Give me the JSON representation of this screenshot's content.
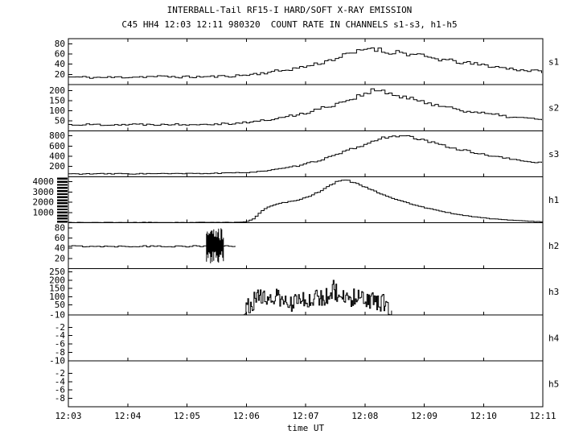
{
  "chart_data": {
    "type": "line",
    "title": "INTERBALL-Tail RF15-I HARD/SOFT X-RAY EMISSION",
    "subtitle": "C45 HH4 12:03 12:11 980320  COUNT RATE IN CHANNELS s1-s3, h1-h5",
    "xlabel": "time UT",
    "x_ticks": [
      "12:03",
      "12:04",
      "12:05",
      "12:06",
      "12:07",
      "12:08",
      "12:09",
      "12:10",
      "12:11"
    ],
    "x_range_minutes": [
      0,
      8
    ],
    "grid": false,
    "legend": "none",
    "foreground": "#000000",
    "background": "#ffffff",
    "panels": [
      {
        "label": "s1",
        "ylim": [
          0,
          90
        ],
        "yticks": [
          20,
          40,
          60,
          80
        ],
        "dt": 0.06,
        "noise": 5,
        "seed": 11,
        "envelope": [
          [
            0,
            15
          ],
          [
            0.5,
            14
          ],
          [
            1,
            15
          ],
          [
            1.5,
            16
          ],
          [
            2,
            15
          ],
          [
            2.5,
            16
          ],
          [
            2.9,
            18
          ],
          [
            3.2,
            22
          ],
          [
            3.6,
            28
          ],
          [
            4.0,
            36
          ],
          [
            4.3,
            45
          ],
          [
            4.6,
            56
          ],
          [
            4.9,
            66
          ],
          [
            5.05,
            73
          ],
          [
            5.2,
            69
          ],
          [
            5.35,
            62
          ],
          [
            5.5,
            65
          ],
          [
            5.7,
            60
          ],
          [
            5.9,
            57
          ],
          [
            6.1,
            52
          ],
          [
            6.4,
            47
          ],
          [
            6.7,
            42
          ],
          [
            7.0,
            38
          ],
          [
            7.3,
            33
          ],
          [
            7.6,
            29
          ],
          [
            8.0,
            25
          ]
        ]
      },
      {
        "label": "s2",
        "ylim": [
          0,
          230
        ],
        "yticks": [
          50,
          100,
          150,
          200
        ],
        "dt": 0.06,
        "noise": 12,
        "seed": 22,
        "envelope": [
          [
            0,
            30
          ],
          [
            1,
            31
          ],
          [
            2,
            32
          ],
          [
            2.7,
            36
          ],
          [
            3.0,
            42
          ],
          [
            3.3,
            52
          ],
          [
            3.6,
            66
          ],
          [
            3.9,
            84
          ],
          [
            4.2,
            108
          ],
          [
            4.5,
            135
          ],
          [
            4.8,
            165
          ],
          [
            5.0,
            190
          ],
          [
            5.15,
            203
          ],
          [
            5.3,
            192
          ],
          [
            5.5,
            175
          ],
          [
            5.7,
            160
          ],
          [
            5.9,
            150
          ],
          [
            6.1,
            135
          ],
          [
            6.4,
            115
          ],
          [
            6.7,
            98
          ],
          [
            7.0,
            85
          ],
          [
            7.4,
            70
          ],
          [
            7.7,
            62
          ],
          [
            8.0,
            55
          ]
        ]
      },
      {
        "label": "s3",
        "ylim": [
          0,
          900
        ],
        "yticks": [
          200,
          400,
          600,
          800
        ],
        "dt": 0.06,
        "noise": 25,
        "seed": 33,
        "envelope": [
          [
            0,
            55
          ],
          [
            1,
            58
          ],
          [
            2,
            60
          ],
          [
            2.7,
            70
          ],
          [
            3.0,
            85
          ],
          [
            3.3,
            115
          ],
          [
            3.6,
            160
          ],
          [
            3.9,
            225
          ],
          [
            4.2,
            320
          ],
          [
            4.5,
            430
          ],
          [
            4.8,
            560
          ],
          [
            5.1,
            680
          ],
          [
            5.3,
            770
          ],
          [
            5.5,
            805
          ],
          [
            5.7,
            780
          ],
          [
            5.9,
            730
          ],
          [
            6.1,
            670
          ],
          [
            6.4,
            580
          ],
          [
            6.7,
            500
          ],
          [
            7.0,
            430
          ],
          [
            7.4,
            350
          ],
          [
            7.7,
            300
          ],
          [
            8.0,
            265
          ]
        ]
      },
      {
        "label": "h1",
        "ylim": [
          0,
          4500
        ],
        "yticks": [
          1000,
          2000,
          3000,
          4000
        ],
        "dt": 0.05,
        "noise": 60,
        "seed": 44,
        "thick_minor_ticks": {
          "from": 100,
          "step": 300,
          "to": 4400
        },
        "envelope": [
          [
            0,
            25
          ],
          [
            1,
            25
          ],
          [
            2,
            28
          ],
          [
            2.8,
            35
          ],
          [
            3.0,
            120
          ],
          [
            3.1,
            400
          ],
          [
            3.2,
            900
          ],
          [
            3.3,
            1400
          ],
          [
            3.45,
            1750
          ],
          [
            3.6,
            1950
          ],
          [
            3.8,
            2150
          ],
          [
            4.0,
            2500
          ],
          [
            4.2,
            3000
          ],
          [
            4.35,
            3500
          ],
          [
            4.5,
            4000
          ],
          [
            4.6,
            4200
          ],
          [
            4.7,
            4100
          ],
          [
            4.85,
            3800
          ],
          [
            5.0,
            3450
          ],
          [
            5.2,
            2950
          ],
          [
            5.4,
            2500
          ],
          [
            5.6,
            2100
          ],
          [
            5.9,
            1600
          ],
          [
            6.2,
            1200
          ],
          [
            6.5,
            850
          ],
          [
            6.8,
            600
          ],
          [
            7.1,
            400
          ],
          [
            7.4,
            260
          ],
          [
            7.7,
            160
          ],
          [
            8.0,
            100
          ]
        ]
      },
      {
        "label": "h2",
        "ylim": [
          0,
          90
        ],
        "yticks": [
          20,
          40,
          60,
          80
        ],
        "dt": 0.06,
        "noise": 1.5,
        "noise_abs": true,
        "seed": 55,
        "trange": [
          0,
          2.81
        ],
        "envelope": [
          [
            0,
            44
          ],
          [
            2.81,
            44
          ]
        ],
        "bursts": [
          {
            "t0": 2.33,
            "t1": 2.62,
            "ymin": 10,
            "ymax": 80,
            "seed": 56
          }
        ]
      },
      {
        "label": "h3",
        "ylim": [
          -10,
          270
        ],
        "yticks": [
          -10,
          50,
          100,
          150,
          200,
          250
        ],
        "dt": 0.015,
        "noise": 55,
        "noise_abs": true,
        "seed": 66,
        "trange": [
          2.95,
          5.45
        ],
        "envelope": [
          [
            2.95,
            5
          ],
          [
            3.0,
            40
          ],
          [
            3.1,
            70
          ],
          [
            3.2,
            90
          ],
          [
            3.3,
            105
          ],
          [
            3.45,
            100
          ],
          [
            3.6,
            75
          ],
          [
            3.75,
            58
          ],
          [
            3.9,
            75
          ],
          [
            4.05,
            90
          ],
          [
            4.2,
            95
          ],
          [
            4.35,
            105
          ],
          [
            4.43,
            130
          ],
          [
            4.46,
            205
          ],
          [
            4.5,
            125
          ],
          [
            4.6,
            105
          ],
          [
            4.75,
            95
          ],
          [
            4.9,
            88
          ],
          [
            5.05,
            80
          ],
          [
            5.2,
            72
          ],
          [
            5.3,
            60
          ],
          [
            5.4,
            35
          ],
          [
            5.45,
            0
          ]
        ]
      },
      {
        "label": "h4",
        "ylim": [
          -10,
          1
        ],
        "yticks": [
          -2,
          -4,
          -6,
          -8,
          -10
        ],
        "envelope": []
      },
      {
        "label": "h5",
        "ylim": [
          -10,
          1
        ],
        "yticks": [
          -2,
          -4,
          -6,
          -8
        ],
        "envelope": []
      }
    ]
  }
}
